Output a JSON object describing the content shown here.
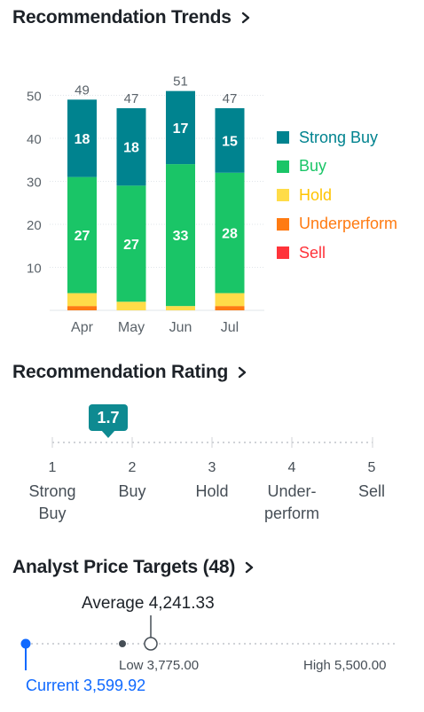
{
  "trends": {
    "title": "Recommendation Trends",
    "chart_data": {
      "type": "bar",
      "stacked": true,
      "categories": [
        "Apr",
        "May",
        "Jun",
        "Jul"
      ],
      "totals": [
        49,
        47,
        51,
        47
      ],
      "series": [
        {
          "name": "Sell",
          "color": "#ff333a",
          "values": [
            0,
            0,
            0,
            0
          ]
        },
        {
          "name": "Underperform",
          "color": "#ff7b12",
          "values": [
            1,
            0,
            0,
            1
          ]
        },
        {
          "name": "Hold",
          "color": "#ffdc48",
          "values": [
            3,
            2,
            1,
            3
          ]
        },
        {
          "name": "Buy",
          "color": "#1ac567",
          "values": [
            27,
            27,
            33,
            28
          ]
        },
        {
          "name": "Strong Buy",
          "color": "#00838f",
          "values": [
            18,
            18,
            17,
            15
          ]
        }
      ],
      "labeled_series": [
        "Buy",
        "Strong Buy"
      ],
      "y_ticks": [
        10,
        20,
        30,
        40,
        50
      ],
      "ylim": [
        0,
        52
      ],
      "grid": true,
      "legend_position": "right"
    },
    "legend": [
      {
        "label": "Strong Buy",
        "color": "#00838f"
      },
      {
        "label": "Buy",
        "color": "#1ac567"
      },
      {
        "label": "Hold",
        "color": "#ffdc48"
      },
      {
        "label": "Underperform",
        "color": "#ff7b12"
      },
      {
        "label": "Sell",
        "color": "#ff333a"
      }
    ]
  },
  "rating": {
    "title": "Recommendation Rating",
    "value": "1.7",
    "value_numeric": 1.7,
    "scale": [
      {
        "num": "1",
        "line1": "Strong",
        "line2": "Buy"
      },
      {
        "num": "2",
        "line1": "Buy",
        "line2": ""
      },
      {
        "num": "3",
        "line1": "Hold",
        "line2": ""
      },
      {
        "num": "4",
        "line1": "Under-",
        "line2": "perform"
      },
      {
        "num": "5",
        "line1": "Sell",
        "line2": ""
      }
    ]
  },
  "targets": {
    "title": "Analyst Price Targets (48)",
    "average_label": "Average 4,241.33",
    "low_label": "Low 3,775.00",
    "high_label": "High 5,500.00",
    "current_label": "Current 3,599.92",
    "current_color": "#0f69ff",
    "values": {
      "current": 3599.92,
      "low": 3775.0,
      "average": 4241.33,
      "high": 5500.0
    }
  }
}
